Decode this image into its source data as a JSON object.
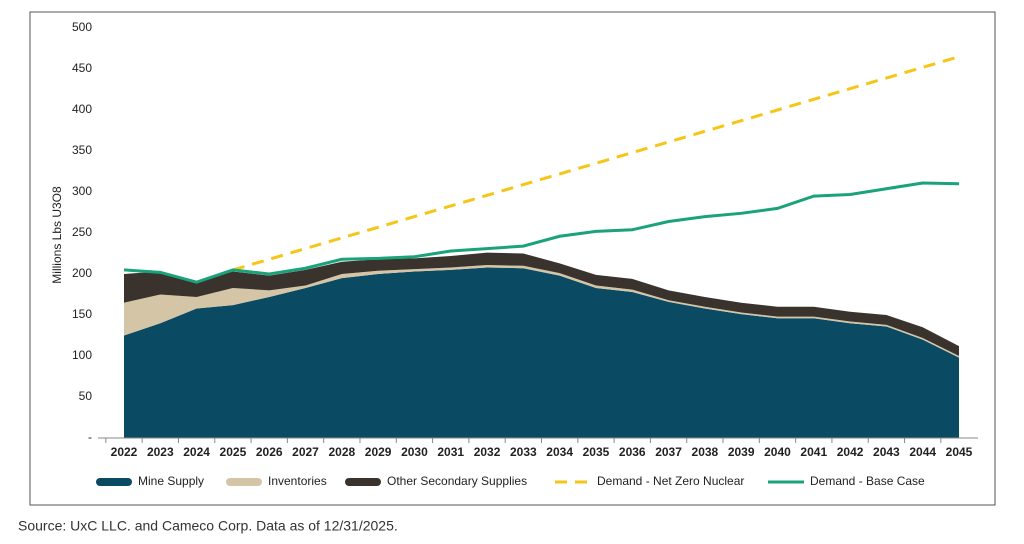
{
  "chart_data": {
    "type": "stacked-area-line",
    "y_label": "Millions Lbs U3O8",
    "source": "Source: UxC LLC. and Cameco Corp. Data as of 12/31/2025.",
    "categories": [
      "2022",
      "2023",
      "2024",
      "2025",
      "2026",
      "2027",
      "2028",
      "2029",
      "2030",
      "2031",
      "2032",
      "2033",
      "2034",
      "2035",
      "2036",
      "2037",
      "2038",
      "2039",
      "2040",
      "2041",
      "2042",
      "2043",
      "2044",
      "2045"
    ],
    "ylim": [
      0,
      500
    ],
    "yticks": [
      {
        "value": 0,
        "label": "-"
      },
      50,
      100,
      150,
      200,
      250,
      300,
      350,
      400,
      450,
      500
    ],
    "series": [
      {
        "name": "Mine Supply",
        "kind": "area",
        "color": "#0b4a63",
        "values": [
          125,
          140,
          158,
          162,
          172,
          183,
          195,
          200,
          203,
          205,
          208,
          207,
          198,
          183,
          178,
          166,
          158,
          151,
          146,
          146,
          140,
          136,
          120,
          98
        ]
      },
      {
        "name": "Inventories",
        "kind": "area",
        "color": "#d4c5a6",
        "values": [
          40,
          35,
          14,
          21,
          8,
          3,
          5,
          4,
          3,
          3,
          3,
          3,
          3,
          3,
          3,
          2,
          2,
          2,
          2,
          2,
          2,
          2,
          2,
          2
        ]
      },
      {
        "name": "Other Secondary Supplies",
        "kind": "area",
        "color": "#3a332d",
        "values": [
          35,
          28,
          18,
          20,
          18,
          19,
          15,
          14,
          13,
          14,
          15,
          15,
          12,
          13,
          13,
          12,
          12,
          12,
          12,
          12,
          12,
          12,
          13,
          12
        ]
      },
      {
        "name": "Demand - Net Zero Nuclear",
        "kind": "line",
        "style": "dashed",
        "color": "#f5c518",
        "values": [
          null,
          null,
          null,
          205,
          218,
          231,
          244,
          257,
          270,
          283,
          296,
          309,
          322,
          335,
          348,
          361,
          374,
          387,
          400,
          413,
          426,
          439,
          452,
          465
        ]
      },
      {
        "name": "Demand - Base Case",
        "kind": "line",
        "style": "solid",
        "color": "#1aa37a",
        "values": [
          205,
          202,
          190,
          205,
          200,
          207,
          218,
          219,
          221,
          228,
          231,
          234,
          246,
          252,
          254,
          264,
          270,
          274,
          280,
          295,
          297,
          304,
          311,
          310
        ]
      }
    ]
  }
}
